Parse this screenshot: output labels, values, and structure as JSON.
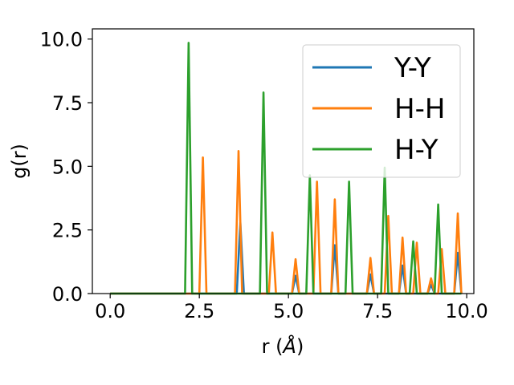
{
  "chart_data": {
    "type": "line",
    "xlabel": "r (",
    "xlabel_unit": "Å",
    "xlabel_close": ")",
    "ylabel": "g(r)",
    "xlim": [
      -0.5,
      10.2
    ],
    "ylim": [
      0,
      10.4
    ],
    "xticks": [
      0.0,
      2.5,
      5.0,
      7.5,
      10.0
    ],
    "xtick_labels": [
      "0.0",
      "2.5",
      "5.0",
      "7.5",
      "10.0"
    ],
    "yticks": [
      0.0,
      2.5,
      5.0,
      7.5,
      10.0
    ],
    "ytick_labels": [
      "0.0",
      "2.5",
      "5.0",
      "7.5",
      "10.0"
    ],
    "grid": false,
    "legend_position": "top-right",
    "series": [
      {
        "name": "Y-Y",
        "color": "#1f77b4",
        "peaks": [
          [
            3.65,
            2.8
          ],
          [
            5.2,
            0.7
          ],
          [
            6.3,
            1.9
          ],
          [
            7.3,
            0.75
          ],
          [
            8.2,
            1.1
          ],
          [
            9.0,
            0.35
          ],
          [
            9.75,
            1.6
          ]
        ]
      },
      {
        "name": "H-H",
        "color": "#ff7f0e",
        "peaks": [
          [
            2.6,
            5.35
          ],
          [
            3.6,
            5.6
          ],
          [
            4.55,
            2.4
          ],
          [
            5.2,
            1.35
          ],
          [
            5.8,
            4.4
          ],
          [
            6.3,
            3.7
          ],
          [
            7.3,
            1.4
          ],
          [
            7.8,
            3.05
          ],
          [
            8.2,
            2.2
          ],
          [
            8.6,
            2.0
          ],
          [
            9.0,
            0.6
          ],
          [
            9.3,
            1.75
          ],
          [
            9.75,
            3.15
          ]
        ]
      },
      {
        "name": "H-Y",
        "color": "#2ca02c",
        "peaks": [
          [
            2.2,
            9.85
          ],
          [
            4.3,
            7.9
          ],
          [
            5.6,
            4.65
          ],
          [
            6.7,
            4.4
          ],
          [
            7.7,
            4.95
          ],
          [
            8.5,
            2.05
          ],
          [
            9.2,
            3.5
          ]
        ]
      }
    ],
    "x_range": [
      0.0,
      9.85
    ]
  }
}
